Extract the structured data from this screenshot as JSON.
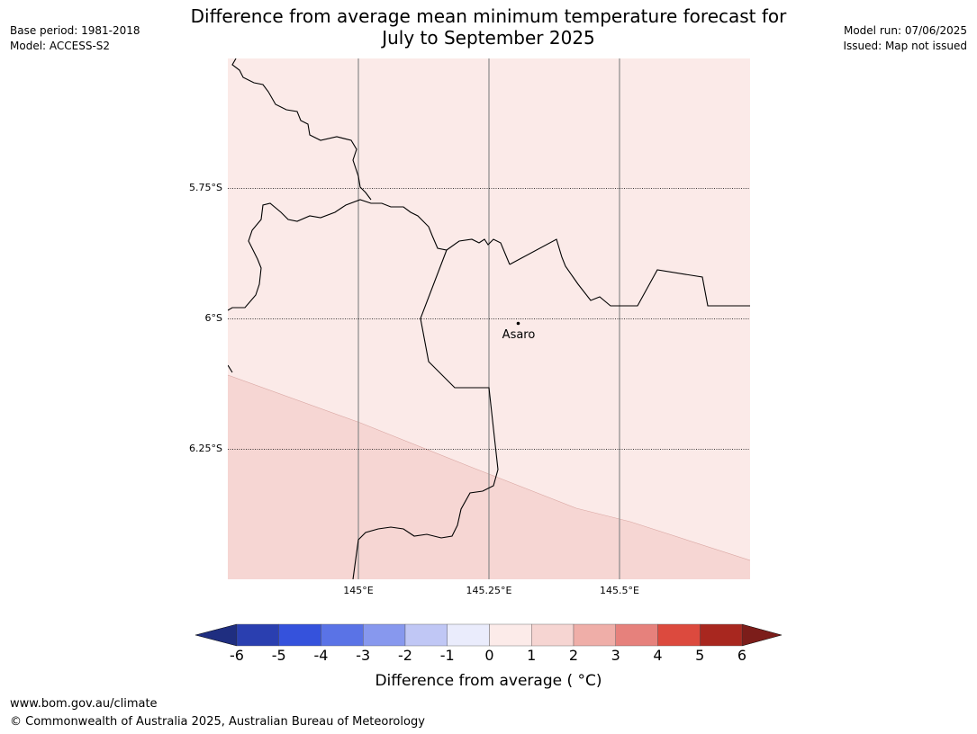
{
  "title": {
    "line1": "Difference from average mean minimum temperature forecast for",
    "line2": "July to September 2025"
  },
  "meta_left": {
    "base_period": "Base period: 1981-2018",
    "model": "Model: ACCESS-S2"
  },
  "meta_right": {
    "model_run": "Model run: 07/06/2025",
    "issued": "Issued: Map not issued"
  },
  "map": {
    "lat_labels": [
      "5.75°S",
      "6°S",
      "6.25°S"
    ],
    "lon_labels": [
      "145°E",
      "145.25°E",
      "145.5°E"
    ],
    "place": {
      "name": "Asaro"
    },
    "zones": [
      {
        "range": "0 to 1",
        "color": "#fbeae8"
      },
      {
        "range": "1 to 2",
        "color": "#f6d6d3"
      }
    ]
  },
  "colorbar": {
    "title": "Difference from average ( °C)",
    "ticks": [
      "-6",
      "-5",
      "-4",
      "-3",
      "-2",
      "-1",
      "0",
      "1",
      "2",
      "3",
      "4",
      "5",
      "6"
    ],
    "under_color": "#1f2e80",
    "over_color": "#7c1d1a",
    "colors": [
      "#2a3fb0",
      "#3552dc",
      "#5a73e6",
      "#8798ee",
      "#c0c7f5",
      "#eaecfc",
      "#fcebe9",
      "#f6d5d2",
      "#efaea8",
      "#e6817c",
      "#dc4a3e",
      "#a8271f"
    ]
  },
  "footer": {
    "url": "www.bom.gov.au/climate",
    "copyright": "© Commonwealth of Australia 2025, Australian Bureau of Meteorology"
  }
}
